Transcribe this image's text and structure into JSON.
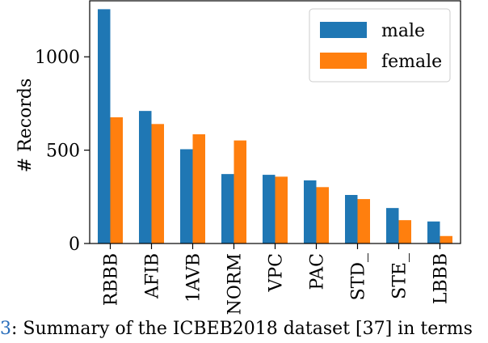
{
  "chart_data": {
    "type": "bar",
    "title": "",
    "xlabel": "",
    "ylabel": "# Records",
    "ylim": [
      0,
      1300
    ],
    "yticks": [
      0,
      500,
      1000
    ],
    "categories": [
      "RBBB",
      "AFIB",
      "1AVB",
      "NORM",
      "VPC",
      "PAC",
      "STD_",
      "STE_",
      "LBBB"
    ],
    "series": [
      {
        "name": "male",
        "color": "#1f77b4",
        "values": [
          1255,
          710,
          505,
          372,
          368,
          338,
          260,
          190,
          118
        ]
      },
      {
        "name": "female",
        "color": "#ff7f0e",
        "values": [
          676,
          640,
          585,
          552,
          358,
          302,
          238,
          125,
          40
        ]
      }
    ],
    "legend_position": "top-right",
    "grid": false
  },
  "caption": {
    "fig_number": "3",
    "text": ": Summary of the ICBEB2018 dataset [37] in terms"
  }
}
